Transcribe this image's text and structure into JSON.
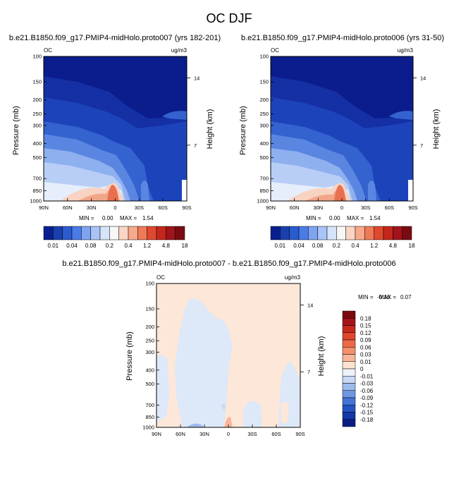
{
  "main_title": "OC DJF",
  "chart_data": [
    {
      "type": "heatmap",
      "id": "panel1",
      "title": "b.e21.B1850.f09_g17.PMIP4-midHolo.proto007 (yrs 182-201)",
      "left_label": "OC",
      "units": "ug/m3",
      "ylabel": "Pressure (mb)",
      "right_ylabel": "Height (km)",
      "x_ticks": [
        "90N",
        "60N",
        "30N",
        "0",
        "30S",
        "60S",
        "90S"
      ],
      "x_values": [
        90,
        60,
        30,
        0,
        -30,
        -60,
        -90
      ],
      "y_ticks": [
        100,
        150,
        200,
        250,
        300,
        400,
        500,
        700,
        850,
        1000
      ],
      "height_ticks": [
        {
          "label": "14",
          "pressure": 141
        },
        {
          "label": "7",
          "pressure": 411
        }
      ],
      "min_label": "MIN =",
      "min_value": "0.00",
      "max_label": "MAX =",
      "max_value": "1.54"
    },
    {
      "type": "heatmap",
      "id": "panel2",
      "title": "b.e21.B1850.f09_g17.PMIP4-midHolo.proto006 (yrs 31-50)",
      "left_label": "OC",
      "units": "ug/m3",
      "ylabel": "Pressure (mb)",
      "right_ylabel": "Height (km)",
      "x_ticks": [
        "90N",
        "60N",
        "30N",
        "0",
        "30S",
        "60S",
        "90S"
      ],
      "x_values": [
        90,
        60,
        30,
        0,
        -30,
        -60,
        -90
      ],
      "y_ticks": [
        100,
        150,
        200,
        250,
        300,
        400,
        500,
        700,
        850,
        1000
      ],
      "height_ticks": [
        {
          "label": "14",
          "pressure": 141
        },
        {
          "label": "7",
          "pressure": 411
        }
      ],
      "min_label": "MIN =",
      "min_value": "0.00",
      "max_label": "MAX =",
      "max_value": "1.54"
    },
    {
      "type": "heatmap",
      "id": "panel3",
      "title": "b.e21.B1850.f09_g17.PMIP4-midHolo.proto007 - b.e21.B1850.f09_g17.PMIP4-midHolo.proto006",
      "left_label": "OC",
      "units": "ug/m3",
      "ylabel": "Pressure (mb)",
      "right_ylabel": "Height (km)",
      "x_ticks": [
        "90N",
        "60N",
        "30N",
        "0",
        "30S",
        "60S",
        "90S"
      ],
      "x_values": [
        90,
        60,
        30,
        0,
        -30,
        -60,
        -90
      ],
      "y_ticks": [
        100,
        150,
        200,
        250,
        300,
        400,
        500,
        700,
        850,
        1000
      ],
      "height_ticks": [
        {
          "label": "14",
          "pressure": 141
        },
        {
          "label": "7",
          "pressure": 411
        }
      ],
      "min_label": "MIN =",
      "min_value": "-0.16",
      "max_label": "MAX =",
      "max_value": "0.07"
    }
  ],
  "colorbar_abs": {
    "labels": [
      "0.01",
      "0.04",
      "0.08",
      "0.2",
      "0.4",
      "1.2",
      "4.8",
      "18"
    ],
    "colors": [
      "#0a1f8f",
      "#1a3fae",
      "#2b5bd0",
      "#4a7be6",
      "#7ea4f1",
      "#a9c4f6",
      "#d6e4fa",
      "#f7f7f7",
      "#fbd5c4",
      "#f7a98a",
      "#f07a58",
      "#e0482f",
      "#c5261b",
      "#a0141a",
      "#7a0b12"
    ]
  },
  "colorbar_diff": {
    "labels": [
      "0.18",
      "0.15",
      "0.12",
      "0.09",
      "0.06",
      "0.03",
      "0.01",
      "0",
      "-0.01",
      "-0.03",
      "-0.06",
      "-0.09",
      "-0.12",
      "-0.15",
      "-0.18"
    ],
    "colors": [
      "#7a0b12",
      "#a5141a",
      "#c8281c",
      "#e0452d",
      "#ee6a47",
      "#f5906d",
      "#f9b69a",
      "#fde2d2",
      "#eef2fb",
      "#c7d8f5",
      "#9dbbee",
      "#6f97e4",
      "#4574d9",
      "#2553c6",
      "#1437a8",
      "#0b1d85"
    ]
  }
}
